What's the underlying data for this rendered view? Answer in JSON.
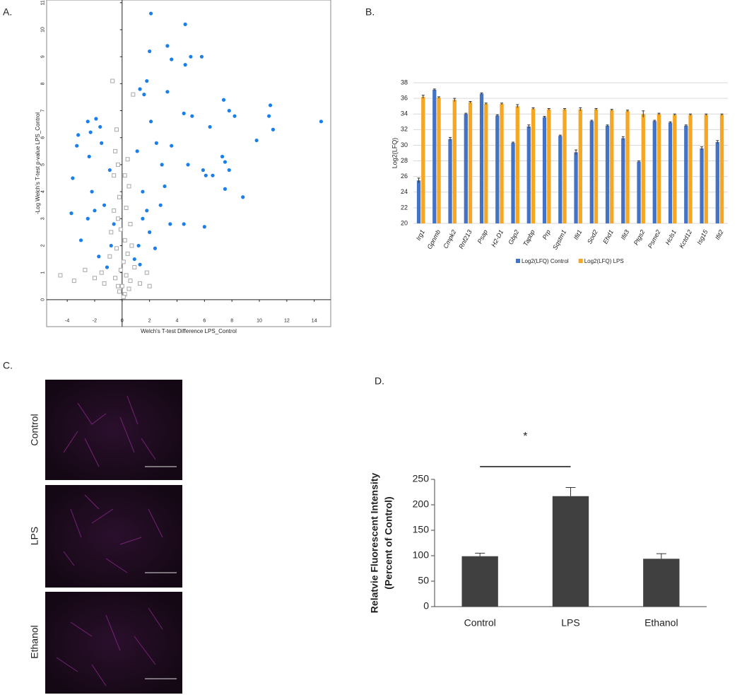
{
  "chart_data": [
    {
      "type": "scatter",
      "title": "A.",
      "xlabel": "Welch's T-test Difference LPS_Control",
      "ylabel": "-Log Welch's T-test p-value LPS_Control",
      "xlim": [
        -5.5,
        15.2
      ],
      "ylim": [
        -1,
        11.1
      ],
      "xticks": [
        -4,
        -2,
        0,
        2,
        4,
        6,
        8,
        10,
        12,
        14
      ],
      "yticks": [
        0,
        1,
        2,
        3,
        4,
        5,
        6,
        7,
        8,
        9,
        10,
        11
      ],
      "series": [
        {
          "color": "#1a7fe8",
          "marker": "circle",
          "x": [
            2.1,
            4.6,
            3.3,
            2.0,
            3.6,
            5.0,
            5.8,
            4.6,
            1.8,
            1.3,
            1.6,
            3.3,
            7.4,
            10.8,
            7.8,
            10.7,
            4.5,
            5.1,
            8.2,
            14.5,
            11.0,
            6.4,
            2.1,
            -1.9,
            -2.5,
            -1.6,
            -2.3,
            -3.2,
            -3.3,
            9.8,
            -1.5,
            2.5,
            3.6,
            7.3,
            7.5,
            4.8,
            2.9,
            -2.4,
            -3.6,
            5.9,
            6.6,
            6.1,
            7.8,
            8.8,
            7.5,
            -3.7,
            -2.5,
            -2.0,
            3.5,
            4.5,
            6.0,
            -3.0,
            2.8,
            1.5,
            1.2,
            0.9,
            -0.8,
            -1.3,
            -0.9,
            1.1,
            1.5,
            2.0,
            -1.7,
            2.4,
            3.1,
            1.8,
            -0.6,
            -2.2,
            1.3,
            -1.1
          ],
          "values": [
            10.6,
            10.2,
            9.4,
            9.2,
            8.9,
            9.0,
            9.0,
            8.7,
            8.1,
            7.8,
            7.6,
            7.7,
            7.4,
            7.2,
            7.0,
            6.8,
            6.9,
            6.8,
            6.8,
            6.6,
            6.3,
            6.4,
            6.6,
            6.7,
            6.6,
            6.4,
            6.2,
            6.1,
            5.7,
            5.9,
            5.8,
            5.8,
            5.7,
            5.3,
            5.1,
            5.0,
            5.0,
            5.3,
            4.5,
            4.8,
            4.6,
            4.6,
            4.8,
            3.8,
            4.1,
            3.2,
            3.0,
            3.3,
            2.8,
            2.8,
            2.7,
            2.2,
            3.5,
            3.0,
            2.0,
            1.5,
            2.0,
            3.5,
            4.8,
            5.5,
            4.0,
            2.5,
            1.6,
            1.9,
            4.2,
            3.3,
            2.8,
            4.0,
            1.3,
            1.2
          ]
        },
        {
          "color": "#a8a8a8",
          "marker": "square",
          "x": [
            -0.7,
            0.8,
            -0.4,
            -0.5,
            0.4,
            -0.6,
            0.5,
            -0.2,
            0.3,
            -0.3,
            0.6,
            -0.8,
            0.2,
            -0.4,
            0.4,
            0.1,
            -0.1,
            0.3,
            -0.5,
            0.6,
            0.0,
            -0.2,
            0.2,
            1.3,
            -1.3,
            -2.0,
            -3.5,
            -4.5,
            -2.7,
            2.0,
            1.8,
            -1.5,
            0.9,
            -0.9,
            0.7,
            -0.6,
            0.1,
            -0.3,
            0.5,
            -0.1,
            0.2,
            -0.3
          ],
          "values": [
            8.1,
            7.6,
            6.3,
            5.5,
            5.2,
            4.6,
            4.2,
            3.8,
            3.4,
            3.0,
            2.8,
            2.5,
            2.2,
            1.9,
            1.7,
            1.4,
            1.1,
            0.9,
            0.8,
            0.7,
            0.5,
            0.3,
            0.2,
            0.6,
            0.6,
            0.8,
            0.7,
            0.9,
            1.1,
            0.5,
            1.0,
            1.0,
            1.2,
            1.6,
            2.0,
            3.3,
            0.1,
            0.5,
            0.4,
            2.6,
            4.6,
            5.0
          ]
        }
      ]
    },
    {
      "type": "bar",
      "title": "B.",
      "ylabel": "Log2(LFQ)",
      "grid": true,
      "categories": [
        "Irg1",
        "Gpnmb",
        "Cmpk2",
        "Rnf213",
        "Psap",
        "H2-D1",
        "Gbp2",
        "Tapbp",
        "Prp",
        "Sqstm1",
        "Ifit1",
        "Sod2",
        "Ehd1",
        "Ifit3",
        "Ptgs2",
        "Psme2",
        "Hcls1",
        "Kctd12",
        "Isg15",
        "Ifit2"
      ],
      "ylim": [
        20,
        38
      ],
      "yticks": [
        20,
        22,
        24,
        26,
        28,
        30,
        32,
        34,
        36,
        38
      ],
      "series": [
        {
          "name": "Log2(LFQ) Control",
          "color": "#4472c4",
          "values": [
            25.5,
            37.1,
            30.8,
            34.0,
            36.6,
            33.8,
            30.3,
            32.4,
            33.6,
            31.2,
            29.1,
            33.1,
            32.5,
            30.9,
            27.9,
            33.1,
            32.9,
            32.5,
            29.6,
            30.4
          ],
          "errors": [
            0.3,
            0.1,
            0.2,
            0.1,
            0.1,
            0.1,
            0.1,
            0.2,
            0.1,
            0.1,
            0.3,
            0.1,
            0.1,
            0.2,
            0.1,
            0.1,
            0.1,
            0.1,
            0.2,
            0.2
          ]
        },
        {
          "name": "Log2(LFQ) LPS",
          "color": "#f5a623",
          "values": [
            36.2,
            36.1,
            35.8,
            35.5,
            35.3,
            35.3,
            35.0,
            34.7,
            34.6,
            34.6,
            34.6,
            34.6,
            34.5,
            34.4,
            34.0,
            34.0,
            33.9,
            33.9,
            33.9,
            33.9
          ],
          "errors": [
            0.2,
            0.1,
            0.2,
            0.1,
            0.1,
            0.1,
            0.2,
            0.1,
            0.1,
            0.1,
            0.2,
            0.1,
            0.1,
            0.1,
            0.4,
            0.1,
            0.1,
            0.1,
            0.1,
            0.1
          ]
        }
      ]
    },
    {
      "type": "bar",
      "title": "D.",
      "ylabel": [
        "Relatvie Fluorescent Intensity",
        "(Percent of Control)"
      ],
      "categories": [
        "Control",
        "LPS",
        "Ethanol"
      ],
      "values": [
        99,
        217,
        94
      ],
      "errors": [
        6,
        17,
        10
      ],
      "color": "#404040",
      "ylim": [
        0,
        250
      ],
      "yticks": [
        0,
        50,
        100,
        150,
        200,
        250
      ],
      "annotation": "*"
    }
  ],
  "micrographs": {
    "title": "C.",
    "labels": [
      "Control",
      "LPS",
      "Ethanol"
    ]
  }
}
